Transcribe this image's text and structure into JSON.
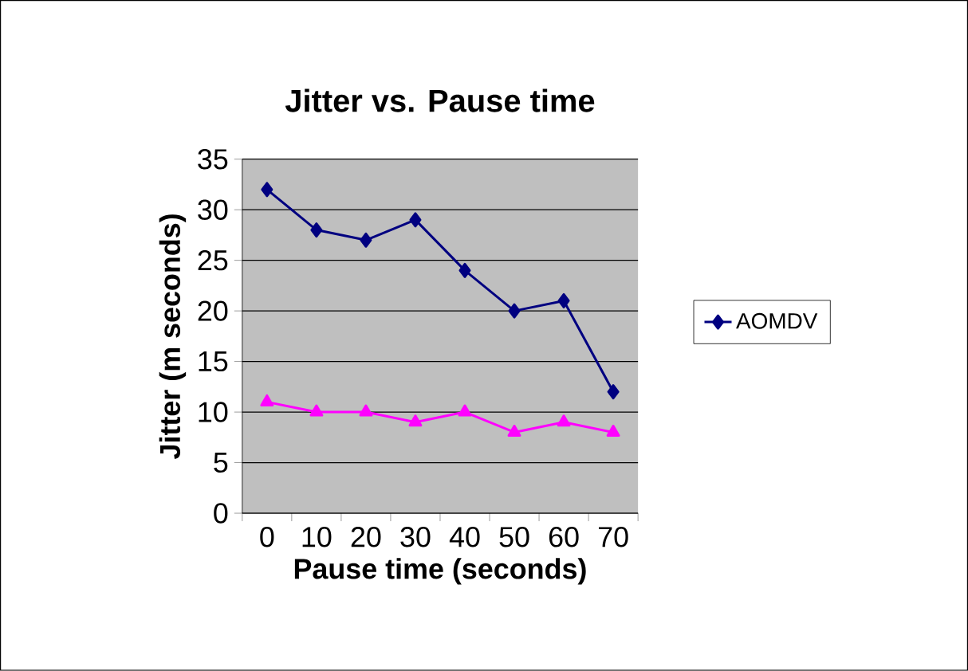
{
  "chart_data": {
    "type": "line",
    "title": "Jitter vs. Pause time",
    "xlabel": "Pause time (seconds)",
    "ylabel": "Jitter  (m seconds)",
    "categories": [
      "0",
      "10",
      "20",
      "30",
      "40",
      "50",
      "60",
      "70"
    ],
    "series": [
      {
        "name": "AOMDV",
        "color": "#000080",
        "marker": "diamond",
        "values": [
          32,
          28,
          27,
          29,
          24,
          20,
          21,
          12
        ]
      },
      {
        "color": "#ff00ff",
        "marker": "triangle",
        "values": [
          11,
          10,
          10,
          9,
          10,
          8,
          9,
          8
        ]
      }
    ],
    "ylim": [
      0,
      35
    ],
    "yticks": [
      0,
      5,
      10,
      15,
      20,
      25,
      30,
      35
    ],
    "grid": "y",
    "legend": "right",
    "line_style": "solid"
  }
}
